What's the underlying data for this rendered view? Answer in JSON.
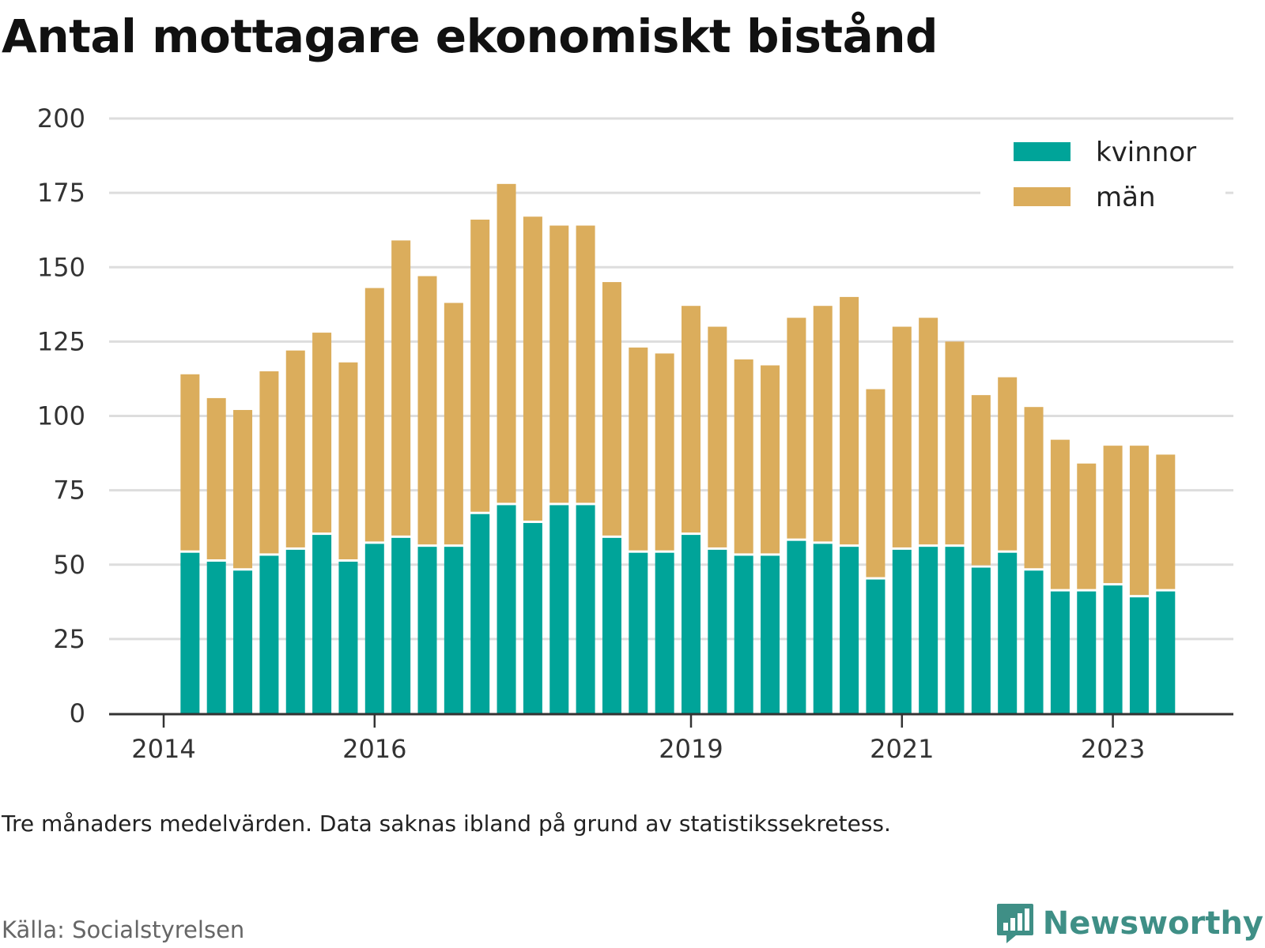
{
  "title": "Antal mottagare ekonomiskt bistånd",
  "note": "Tre månaders medelvärden. Data saknas ibland på grund av statistikssekretess.",
  "source": "Källa: Socialstyrelsen",
  "brand": "Newsworthy",
  "colors": {
    "kvinnor": "#00a499",
    "man": "#dbad5c",
    "grid": "#dddddd",
    "axis": "#333333",
    "brand": "#3f8f86"
  },
  "chart_data": {
    "type": "bar",
    "stacked": true,
    "ylim": [
      0,
      200
    ],
    "yticks": [
      0,
      25,
      50,
      75,
      100,
      125,
      150,
      175,
      200
    ],
    "xticks": [
      {
        "label": "2014",
        "at": 0
      },
      {
        "label": "2016",
        "at": 8
      },
      {
        "label": "2019",
        "at": 20
      },
      {
        "label": "2021",
        "at": 28
      },
      {
        "label": "2023",
        "at": 36
      }
    ],
    "legend_position": "top-right",
    "grid": true,
    "series": [
      {
        "name": "kvinnor",
        "values": [
          null,
          54,
          51,
          48,
          53,
          55,
          60,
          51,
          57,
          59,
          56,
          56,
          67,
          70,
          64,
          70,
          70,
          59,
          54,
          54,
          60,
          55,
          53,
          53,
          58,
          57,
          56,
          45,
          55,
          56,
          56,
          49,
          54,
          48,
          41,
          41,
          43,
          39,
          41
        ]
      },
      {
        "name": "män",
        "values": [
          null,
          60,
          55,
          54,
          62,
          67,
          68,
          67,
          86,
          100,
          91,
          82,
          99,
          108,
          103,
          94,
          94,
          86,
          69,
          67,
          77,
          75,
          66,
          64,
          75,
          80,
          84,
          64,
          75,
          77,
          69,
          58,
          59,
          55,
          51,
          43,
          47,
          51,
          46
        ]
      }
    ]
  }
}
